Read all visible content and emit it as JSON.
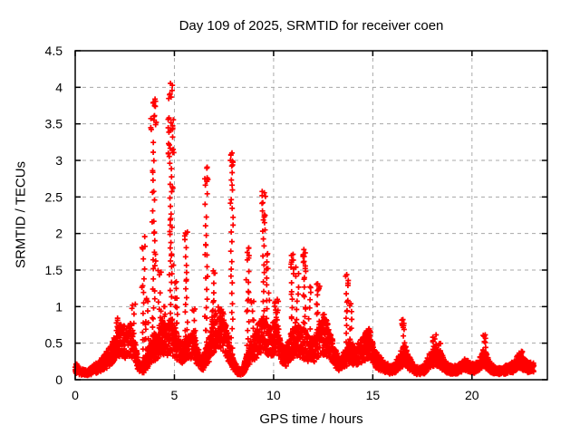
{
  "chart_data": {
    "type": "scatter",
    "title": "Day 109 of 2025, SRMTID for receiver coen",
    "xlabel": "GPS time / hours",
    "ylabel": "SRMTID / TECUs",
    "xlim": [
      0,
      23.8
    ],
    "ylim": [
      0,
      4.5
    ],
    "x_data_range": [
      0,
      23.15
    ],
    "y_max_observed": 4.15,
    "grid": true,
    "legend": "none",
    "marker": "plus",
    "colors": {
      "points": "#ff0000",
      "grid": "#a8a8a8",
      "frame": "#000000",
      "background": "#ffffff",
      "text": "#000000"
    },
    "xticks": [
      {
        "v": 0,
        "label": "0"
      },
      {
        "v": 5,
        "label": "5"
      },
      {
        "v": 10,
        "label": "10"
      },
      {
        "v": 15,
        "label": "15"
      },
      {
        "v": 20,
        "label": "20"
      }
    ],
    "yticks": [
      {
        "v": 0,
        "label": "0"
      },
      {
        "v": 0.5,
        "label": "0.5"
      },
      {
        "v": 1,
        "label": "1"
      },
      {
        "v": 1.5,
        "label": "1.5"
      },
      {
        "v": 2,
        "label": "2"
      },
      {
        "v": 2.5,
        "label": "2.5"
      },
      {
        "v": 3,
        "label": "3"
      },
      {
        "v": 3.5,
        "label": "3.5"
      },
      {
        "v": 4,
        "label": "4"
      },
      {
        "v": 4.5,
        "label": "4.5"
      }
    ],
    "baseline": [
      [
        0,
        0.16
      ],
      [
        0.3,
        0.11
      ],
      [
        0.6,
        0.09
      ],
      [
        0.9,
        0.14
      ],
      [
        1.2,
        0.18
      ],
      [
        1.5,
        0.25
      ],
      [
        1.8,
        0.33
      ],
      [
        2.05,
        0.5
      ],
      [
        2.3,
        0.55
      ],
      [
        2.55,
        0.5
      ],
      [
        2.8,
        0.55
      ],
      [
        3.0,
        0.4
      ],
      [
        3.2,
        0.18
      ],
      [
        3.4,
        0.15
      ],
      [
        3.6,
        0.25
      ],
      [
        3.8,
        0.38
      ],
      [
        4.0,
        0.45
      ],
      [
        4.2,
        0.5
      ],
      [
        4.4,
        0.62
      ],
      [
        4.6,
        0.52
      ],
      [
        4.8,
        0.62
      ],
      [
        5.0,
        0.52
      ],
      [
        5.2,
        0.42
      ],
      [
        5.45,
        0.38
      ],
      [
        5.7,
        0.45
      ],
      [
        5.95,
        0.5
      ],
      [
        6.2,
        0.3
      ],
      [
        6.45,
        0.22
      ],
      [
        6.7,
        0.4
      ],
      [
        6.95,
        0.62
      ],
      [
        7.2,
        0.75
      ],
      [
        7.45,
        0.68
      ],
      [
        7.7,
        0.45
      ],
      [
        7.95,
        0.25
      ],
      [
        8.2,
        0.1
      ],
      [
        8.45,
        0.12
      ],
      [
        8.7,
        0.3
      ],
      [
        8.95,
        0.42
      ],
      [
        9.2,
        0.55
      ],
      [
        9.45,
        0.62
      ],
      [
        9.7,
        0.55
      ],
      [
        9.95,
        0.55
      ],
      [
        10.15,
        0.62
      ],
      [
        10.4,
        0.35
      ],
      [
        10.6,
        0.3
      ],
      [
        10.85,
        0.45
      ],
      [
        11.1,
        0.55
      ],
      [
        11.35,
        0.5
      ],
      [
        11.6,
        0.48
      ],
      [
        11.85,
        0.4
      ],
      [
        12.1,
        0.42
      ],
      [
        12.35,
        0.55
      ],
      [
        12.6,
        0.6
      ],
      [
        12.85,
        0.5
      ],
      [
        13.1,
        0.3
      ],
      [
        13.35,
        0.2
      ],
      [
        13.6,
        0.3
      ],
      [
        13.85,
        0.38
      ],
      [
        14.1,
        0.32
      ],
      [
        14.35,
        0.38
      ],
      [
        14.6,
        0.45
      ],
      [
        14.85,
        0.5
      ],
      [
        15.1,
        0.3
      ],
      [
        15.35,
        0.22
      ],
      [
        15.6,
        0.18
      ],
      [
        15.85,
        0.14
      ],
      [
        16.1,
        0.15
      ],
      [
        16.35,
        0.25
      ],
      [
        16.6,
        0.35
      ],
      [
        16.85,
        0.22
      ],
      [
        17.1,
        0.13
      ],
      [
        17.35,
        0.12
      ],
      [
        17.6,
        0.14
      ],
      [
        17.85,
        0.25
      ],
      [
        18.1,
        0.32
      ],
      [
        18.35,
        0.3
      ],
      [
        18.6,
        0.2
      ],
      [
        18.85,
        0.14
      ],
      [
        19.1,
        0.13
      ],
      [
        19.35,
        0.15
      ],
      [
        19.6,
        0.2
      ],
      [
        19.85,
        0.18
      ],
      [
        20.1,
        0.15
      ],
      [
        20.35,
        0.2
      ],
      [
        20.6,
        0.3
      ],
      [
        20.85,
        0.2
      ],
      [
        21.1,
        0.13
      ],
      [
        21.35,
        0.11
      ],
      [
        21.6,
        0.13
      ],
      [
        21.85,
        0.15
      ],
      [
        22.1,
        0.17
      ],
      [
        22.35,
        0.25
      ],
      [
        22.6,
        0.22
      ],
      [
        22.85,
        0.17
      ],
      [
        23.1,
        0.16
      ]
    ],
    "spikes": [
      {
        "x": 2.15,
        "peak": 0.85
      },
      {
        "x": 2.95,
        "peak": 1.05
      },
      {
        "x": 3.45,
        "peak": 2.05
      },
      {
        "x": 3.6,
        "peak": 1.2
      },
      {
        "x": 3.95,
        "peak": 3.85,
        "w": 0.3,
        "step": 0.13,
        "clusters": [
          [
            3.35,
            3.85,
            14
          ]
        ]
      },
      {
        "x": 4.25,
        "peak": 1.5
      },
      {
        "x": 4.55,
        "peak": 1.0
      },
      {
        "x": 4.82,
        "peak": 4.16,
        "w": 0.3,
        "step": 0.1,
        "clusters": [
          [
            3.8,
            4.16,
            7
          ],
          [
            2.95,
            3.6,
            22
          ]
        ]
      },
      {
        "x": 5.1,
        "peak": 1.35
      },
      {
        "x": 5.6,
        "peak": 2.05,
        "clusters": [
          [
            1.85,
            2.05,
            5
          ]
        ]
      },
      {
        "x": 6.0,
        "peak": 1.0
      },
      {
        "x": 6.6,
        "peak": 2.92,
        "step": 0.14,
        "clusters": [
          [
            2.7,
            2.92,
            6
          ]
        ]
      },
      {
        "x": 6.95,
        "peak": 1.55
      },
      {
        "x": 7.3,
        "peak": 1.0
      },
      {
        "x": 7.9,
        "peak": 3.12,
        "step": 0.12,
        "clusters": [
          [
            2.9,
            3.12,
            8
          ]
        ]
      },
      {
        "x": 8.7,
        "peak": 1.85,
        "clusters": [
          [
            1.6,
            1.85,
            6
          ]
        ]
      },
      {
        "x": 8.95,
        "peak": 1.1
      },
      {
        "x": 9.5,
        "peak": 2.58,
        "step": 0.12,
        "clusters": [
          [
            2.15,
            2.58,
            10
          ]
        ]
      },
      {
        "x": 9.7,
        "peak": 1.75
      },
      {
        "x": 10.15,
        "peak": 1.2,
        "clusters": [
          [
            0.9,
            1.2,
            10
          ]
        ]
      },
      {
        "x": 10.95,
        "peak": 1.72,
        "clusters": [
          [
            1.5,
            1.72,
            8
          ]
        ]
      },
      {
        "x": 11.2,
        "peak": 1.55
      },
      {
        "x": 11.55,
        "peak": 1.8,
        "clusters": [
          [
            1.55,
            1.8,
            9
          ]
        ]
      },
      {
        "x": 11.8,
        "peak": 1.3
      },
      {
        "x": 12.25,
        "peak": 1.36,
        "clusters": [
          [
            1.2,
            1.36,
            6
          ]
        ]
      },
      {
        "x": 12.55,
        "peak": 0.95
      },
      {
        "x": 13.7,
        "peak": 1.45,
        "clusters": [
          [
            1.28,
            1.45,
            6
          ]
        ]
      },
      {
        "x": 13.9,
        "peak": 1.05
      },
      {
        "x": 14.75,
        "peak": 0.68,
        "clusters": [
          [
            0.5,
            0.68,
            8
          ]
        ]
      },
      {
        "x": 16.55,
        "peak": 0.85,
        "clusters": [
          [
            0.66,
            0.85,
            9
          ]
        ]
      },
      {
        "x": 18.1,
        "peak": 0.62,
        "clusters": [
          [
            0.45,
            0.62,
            8
          ]
        ]
      },
      {
        "x": 18.35,
        "peak": 0.5
      },
      {
        "x": 20.65,
        "peak": 0.63,
        "clusters": [
          [
            0.5,
            0.63,
            6
          ]
        ]
      },
      {
        "x": 22.45,
        "peak": 0.4,
        "clusters": [
          [
            0.3,
            0.4,
            6
          ]
        ]
      }
    ]
  }
}
